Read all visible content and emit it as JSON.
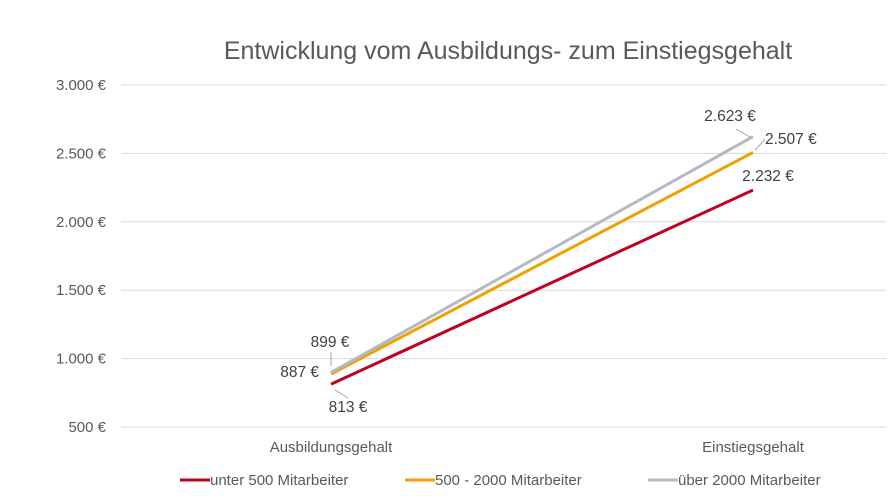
{
  "chart_data": {
    "type": "line",
    "title": "Entwicklung vom Ausbildungs- zum Einstiegsgehalt",
    "categories": [
      "Ausbildungsgehalt",
      "Einstiegsgehalt"
    ],
    "ylim": [
      500,
      3000
    ],
    "yticks": [
      500,
      1000,
      1500,
      2000,
      2500,
      3000
    ],
    "ytick_labels": [
      "500 €",
      "1.000 €",
      "1.500 €",
      "2.000 €",
      "2.500 €",
      "3.000 €"
    ],
    "grid": true,
    "legend_position": "bottom",
    "series": [
      {
        "name": "unter 500 Mitarbeiter",
        "color": "#c00020",
        "values": [
          813,
          2232
        ],
        "labels": [
          "813 €",
          "2.232 €"
        ]
      },
      {
        "name": "500 - 2000 Mitarbeiter",
        "color": "#f0a000",
        "values": [
          887,
          2507
        ],
        "labels": [
          "887 €",
          "2.507 €"
        ]
      },
      {
        "name": "über 2000 Mitarbeiter",
        "color": "#b4b9c4",
        "values": [
          899,
          2623
        ],
        "labels": [
          "899 €",
          "2.623 €"
        ]
      }
    ]
  }
}
